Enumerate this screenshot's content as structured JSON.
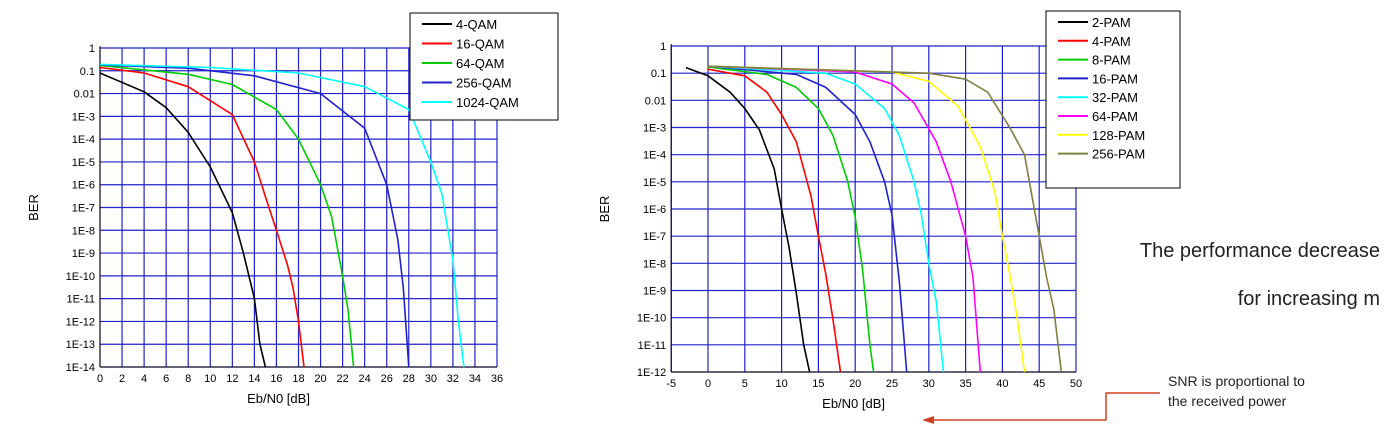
{
  "chart_data": [
    {
      "type": "line",
      "xlabel": "Eb/N0 [dB]",
      "ylabel": "BER",
      "xlim": [
        0,
        36
      ],
      "ylim_log10": [
        -14,
        0
      ],
      "x_ticks": [
        "0",
        "2",
        "4",
        "6",
        "8",
        "10",
        "12",
        "14",
        "16",
        "18",
        "20",
        "22",
        "24",
        "26",
        "28",
        "30",
        "32",
        "34",
        "36"
      ],
      "y_ticks": [
        "1",
        "0.1",
        "0.01",
        "1E-3",
        "1E-4",
        "1E-5",
        "1E-6",
        "1E-7",
        "1E-8",
        "1E-9",
        "1E-10",
        "1E-11",
        "1E-12",
        "1E-13",
        "1E-14"
      ],
      "legend_position": "top-right",
      "grid": true,
      "series": [
        {
          "name": "4-QAM",
          "color": "#000000",
          "points": [
            [
              0,
              0.08
            ],
            [
              4,
              0.012
            ],
            [
              6,
              0.0024
            ],
            [
              8,
              0.0002
            ],
            [
              10,
              6e-06
            ],
            [
              11,
              6e-07
            ],
            [
              12,
              6e-08
            ],
            [
              13,
              1e-09
            ],
            [
              14,
              1e-11
            ],
            [
              14.5,
              1e-13
            ],
            [
              15,
              1e-14
            ]
          ]
        },
        {
          "name": "16-QAM",
          "color": "#ff0000",
          "points": [
            [
              0,
              0.14
            ],
            [
              4,
              0.08
            ],
            [
              8,
              0.02
            ],
            [
              12,
              0.0012
            ],
            [
              14,
              1e-05
            ],
            [
              15,
              3e-07
            ],
            [
              16,
              1e-08
            ],
            [
              17,
              3e-10
            ],
            [
              17.5,
              3e-11
            ],
            [
              18,
              1e-12
            ],
            [
              18.5,
              1e-14
            ]
          ]
        },
        {
          "name": "64-QAM",
          "color": "#00cc00",
          "points": [
            [
              0,
              0.17
            ],
            [
              8,
              0.07
            ],
            [
              12,
              0.025
            ],
            [
              16,
              0.002
            ],
            [
              18,
              0.0001
            ],
            [
              20,
              1e-06
            ],
            [
              21,
              4e-08
            ],
            [
              22,
              1e-10
            ],
            [
              22.5,
              3e-12
            ],
            [
              23,
              1e-14
            ]
          ]
        },
        {
          "name": "256-QAM",
          "color": "#2222cc",
          "points": [
            [
              0,
              0.18
            ],
            [
              8,
              0.13
            ],
            [
              14,
              0.06
            ],
            [
              20,
              0.01
            ],
            [
              24,
              0.0003
            ],
            [
              26,
              1e-06
            ],
            [
              27,
              4e-09
            ],
            [
              27.5,
              3e-11
            ],
            [
              28,
              1e-14
            ]
          ]
        },
        {
          "name": "1024-QAM",
          "color": "#00ffff",
          "points": [
            [
              0,
              0.19
            ],
            [
              10,
              0.14
            ],
            [
              18,
              0.08
            ],
            [
              24,
              0.02
            ],
            [
              28,
              0.002
            ],
            [
              30,
              1e-05
            ],
            [
              31,
              4e-07
            ],
            [
              32,
              5e-10
            ],
            [
              32.5,
              1e-12
            ],
            [
              33,
              1e-14
            ]
          ]
        }
      ]
    },
    {
      "type": "line",
      "xlabel": "Eb/N0 [dB]",
      "ylabel": "BER",
      "xlim": [
        -5,
        50
      ],
      "ylim_log10": [
        -12,
        0
      ],
      "x_ticks": [
        "-5",
        "0",
        "5",
        "10",
        "15",
        "20",
        "25",
        "30",
        "35",
        "40",
        "45",
        "50"
      ],
      "y_ticks": [
        "1",
        "0.1",
        "0.01",
        "1E-3",
        "1E-4",
        "1E-5",
        "1E-6",
        "1E-7",
        "1E-8",
        "1E-9",
        "1E-10",
        "1E-11",
        "1E-12"
      ],
      "legend_position": "top-right",
      "grid": true,
      "series": [
        {
          "name": "2-PAM",
          "color": "#000000",
          "points": [
            [
              -3,
              0.16
            ],
            [
              0,
              0.08
            ],
            [
              3,
              0.02
            ],
            [
              5,
              0.005
            ],
            [
              7,
              0.0008
            ],
            [
              9,
              3e-05
            ],
            [
              10,
              1e-06
            ],
            [
              11,
              4e-08
            ],
            [
              12,
              8e-10
            ],
            [
              13,
              1e-11
            ],
            [
              13.8,
              1e-12
            ]
          ]
        },
        {
          "name": "4-PAM",
          "color": "#ff0000",
          "points": [
            [
              0,
              0.14
            ],
            [
              5,
              0.08
            ],
            [
              8,
              0.02
            ],
            [
              10,
              0.003
            ],
            [
              12,
              0.0003
            ],
            [
              14,
              3e-06
            ],
            [
              15,
              1e-07
            ],
            [
              16,
              4e-09
            ],
            [
              17,
              8e-11
            ],
            [
              18,
              1e-12
            ]
          ]
        },
        {
          "name": "8-PAM",
          "color": "#00cc00",
          "points": [
            [
              0,
              0.17
            ],
            [
              8,
              0.09
            ],
            [
              12,
              0.03
            ],
            [
              15,
              0.005
            ],
            [
              17,
              0.0005
            ],
            [
              19,
              1e-05
            ],
            [
              20,
              5e-07
            ],
            [
              21,
              6e-09
            ],
            [
              22,
              1e-11
            ],
            [
              22.5,
              1e-12
            ]
          ]
        },
        {
          "name": "16-PAM",
          "color": "#2222cc",
          "points": [
            [
              0,
              0.18
            ],
            [
              12,
              0.09
            ],
            [
              16,
              0.03
            ],
            [
              20,
              0.003
            ],
            [
              22,
              0.0003
            ],
            [
              24,
              1e-05
            ],
            [
              25,
              6e-07
            ],
            [
              26,
              2e-09
            ],
            [
              27,
              1e-12
            ]
          ]
        },
        {
          "name": "32-PAM",
          "color": "#00ffff",
          "points": [
            [
              0,
              0.18
            ],
            [
              16,
              0.1
            ],
            [
              20,
              0.04
            ],
            [
              24,
              0.005
            ],
            [
              26,
              0.0005
            ],
            [
              28,
              1e-05
            ],
            [
              29,
              6e-07
            ],
            [
              30,
              1e-08
            ],
            [
              31,
              4e-10
            ],
            [
              32,
              1e-12
            ]
          ]
        },
        {
          "name": "64-PAM",
          "color": "#ff00ff",
          "points": [
            [
              0,
              0.18
            ],
            [
              20,
              0.11
            ],
            [
              25,
              0.04
            ],
            [
              28,
              0.008
            ],
            [
              31,
              0.0003
            ],
            [
              33,
              1e-05
            ],
            [
              35,
              1e-07
            ],
            [
              36,
              3e-09
            ],
            [
              37,
              1e-12
            ]
          ]
        },
        {
          "name": "128-PAM",
          "color": "#ffff00",
          "points": [
            [
              0,
              0.18
            ],
            [
              25,
              0.11
            ],
            [
              30,
              0.05
            ],
            [
              34,
              0.006
            ],
            [
              37,
              0.0002
            ],
            [
              39,
              4e-06
            ],
            [
              40,
              1e-07
            ],
            [
              41,
              4e-09
            ],
            [
              42,
              1e-10
            ],
            [
              43,
              1e-12
            ]
          ]
        },
        {
          "name": "256-PAM",
          "color": "#808040",
          "points": [
            [
              0,
              0.18
            ],
            [
              30,
              0.1
            ],
            [
              35,
              0.06
            ],
            [
              38,
              0.02
            ],
            [
              41,
              0.001
            ],
            [
              43,
              0.0001
            ],
            [
              45,
              1e-07
            ],
            [
              46,
              3e-09
            ],
            [
              47,
              2e-10
            ],
            [
              48,
              1e-12
            ]
          ]
        }
      ]
    }
  ],
  "annotations": {
    "performance_line1": "The performance decrease",
    "performance_line2": "for increasing m",
    "snr_line1": "SNR is proportional to",
    "snr_line2": "the received power"
  }
}
